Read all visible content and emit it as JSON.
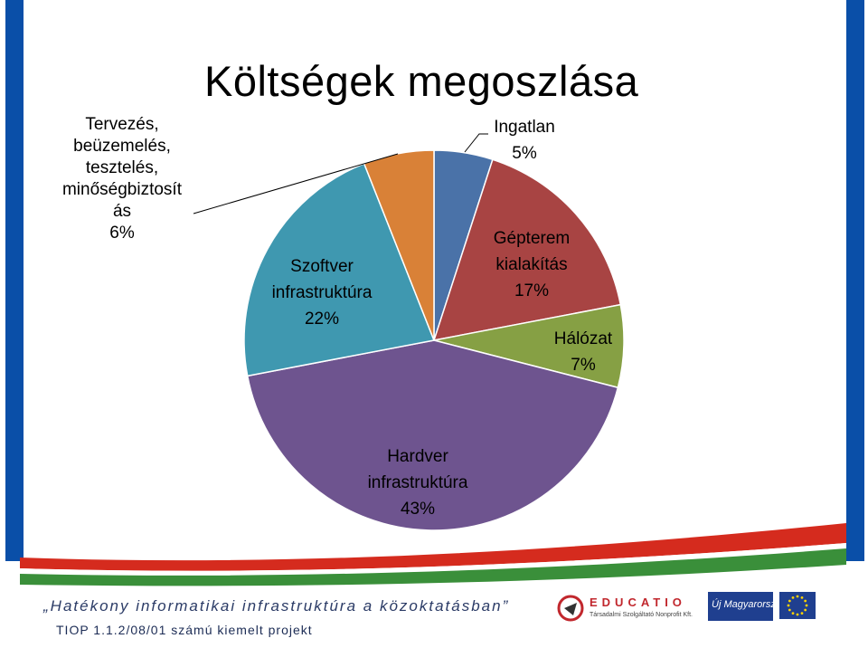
{
  "colors": {
    "side_bar": "#0a4fa8",
    "ribbon_red": "#d52b1e",
    "ribbon_green": "#3a8f3a"
  },
  "chart_data": {
    "type": "pie",
    "title": "Költségek megoszlása",
    "slices": [
      {
        "name": "Ingatlan",
        "value": 5,
        "value_label": "5%",
        "color": "#4a72a8"
      },
      {
        "name": "Gépterem kialakítás",
        "value": 17,
        "value_label": "17%",
        "color": "#a84443"
      },
      {
        "name": "Hálózat",
        "value": 7,
        "value_label": "7%",
        "color": "#86a044"
      },
      {
        "name": "Hardver infrastruktúra",
        "value": 43,
        "value_label": "43%",
        "color": "#6e548f"
      },
      {
        "name": "Szoftver infrastruktúra",
        "value": 22,
        "value_label": "22%",
        "color": "#3f98b0"
      },
      {
        "name": "Tervezés, beüzemelés, tesztelés, minőségbiztosítás",
        "value": 6,
        "value_label": "6%",
        "color": "#d98137"
      }
    ],
    "start_angle_deg": 0,
    "direction": "clockwise"
  },
  "labels": {
    "ingatlan": [
      "Ingatlan",
      "5%"
    ],
    "gepterem": [
      "Gépterem",
      "kialakítás",
      "17%"
    ],
    "halozat": [
      "Hálózat",
      "7%"
    ],
    "hardver": [
      "Hardver",
      "infrastruktúra",
      "43%"
    ],
    "szoftver": [
      "Szoftver",
      "infrastruktúra",
      "22%"
    ],
    "tervezes": [
      "Tervezés,",
      "beüzemelés,",
      "tesztelés,",
      "minőségbiztosít",
      "ás",
      "6%"
    ]
  },
  "footer": {
    "project_title": "„Hatékony informatikai infrastruktúra a közoktatásban”",
    "project_code": "TIOP 1.1.2/08/01 számú kiemelt projekt"
  },
  "logos": {
    "educatio_name": "EDUCATIO",
    "educatio_sub": "Társadalmi Szolgáltató Nonprofit Kft.",
    "uj_magyarorszag": "Új Magyarország"
  }
}
